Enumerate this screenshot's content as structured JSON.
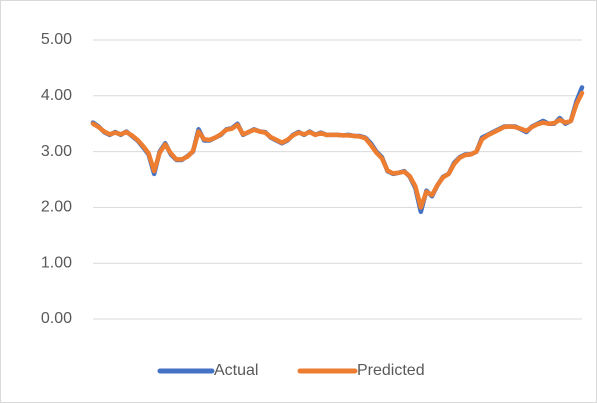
{
  "chart_data": {
    "type": "line",
    "categories": [
      null,
      null,
      null,
      null,
      null,
      null,
      null,
      null,
      null,
      null,
      null,
      null,
      null,
      null,
      null,
      null,
      null,
      null,
      null,
      null,
      null,
      null,
      null,
      null,
      null,
      null,
      null,
      null,
      null,
      null,
      null,
      null,
      null,
      null,
      null,
      null,
      null,
      null,
      null,
      null,
      null,
      null,
      null,
      null,
      null,
      null,
      null,
      null,
      null,
      null,
      null,
      null,
      null,
      null,
      null,
      null,
      null,
      null,
      null,
      null,
      null,
      null,
      null,
      null,
      null,
      null,
      null,
      null,
      null,
      null,
      null,
      null,
      null,
      null,
      null,
      null,
      null,
      null,
      null,
      null,
      null,
      null,
      null,
      null,
      null,
      null,
      null,
      null,
      null
    ],
    "series": [
      {
        "name": "Actual",
        "color": "#4472c4",
        "values": [
          3.52,
          3.45,
          3.35,
          3.3,
          3.35,
          3.3,
          3.36,
          3.28,
          3.2,
          3.08,
          2.95,
          2.6,
          3.0,
          3.15,
          2.95,
          2.85,
          2.85,
          2.92,
          3.0,
          3.4,
          3.2,
          3.2,
          3.25,
          3.3,
          3.4,
          3.42,
          3.5,
          3.3,
          3.35,
          3.4,
          3.36,
          3.35,
          3.25,
          3.2,
          3.15,
          3.2,
          3.3,
          3.35,
          3.3,
          3.36,
          3.3,
          3.34,
          3.3,
          3.3,
          3.3,
          3.29,
          3.3,
          3.28,
          3.28,
          3.25,
          3.15,
          3.0,
          2.9,
          2.65,
          2.6,
          2.62,
          2.65,
          2.55,
          2.35,
          1.92,
          2.3,
          2.2,
          2.4,
          2.55,
          2.6,
          2.8,
          2.9,
          2.95,
          2.95,
          3.0,
          3.25,
          3.3,
          3.35,
          3.4,
          3.45,
          3.45,
          3.45,
          3.4,
          3.35,
          3.45,
          3.5,
          3.55,
          3.5,
          3.5,
          3.6,
          3.5,
          3.55,
          3.9,
          4.15
        ]
      },
      {
        "name": "Predicted",
        "color": "#ed7d31",
        "values": [
          3.5,
          3.44,
          3.36,
          3.31,
          3.34,
          3.31,
          3.35,
          3.29,
          3.21,
          3.1,
          2.97,
          2.65,
          2.98,
          3.13,
          2.97,
          2.86,
          2.86,
          2.91,
          3.01,
          3.36,
          3.22,
          3.21,
          3.25,
          3.31,
          3.39,
          3.41,
          3.48,
          3.31,
          3.35,
          3.39,
          3.36,
          3.34,
          3.26,
          3.21,
          3.16,
          3.21,
          3.29,
          3.34,
          3.31,
          3.35,
          3.3,
          3.33,
          3.3,
          3.3,
          3.3,
          3.29,
          3.29,
          3.28,
          3.27,
          3.24,
          3.12,
          2.98,
          2.88,
          2.66,
          2.61,
          2.62,
          2.64,
          2.56,
          2.38,
          2.0,
          2.28,
          2.22,
          2.4,
          2.54,
          2.6,
          2.78,
          2.89,
          2.94,
          2.95,
          3.0,
          3.22,
          3.29,
          3.34,
          3.39,
          3.44,
          3.45,
          3.44,
          3.41,
          3.37,
          3.44,
          3.49,
          3.52,
          3.5,
          3.51,
          3.57,
          3.52,
          3.55,
          3.85,
          4.05
        ]
      }
    ],
    "ylim": [
      0,
      5
    ],
    "yticks": [
      {
        "value": 0,
        "label": "0.00"
      },
      {
        "value": 1,
        "label": "1.00"
      },
      {
        "value": 2,
        "label": "2.00"
      },
      {
        "value": 3,
        "label": "3.00"
      },
      {
        "value": 4,
        "label": "4.00"
      },
      {
        "value": 5,
        "label": "5.00"
      }
    ],
    "grid": true,
    "legend": "bottom"
  }
}
